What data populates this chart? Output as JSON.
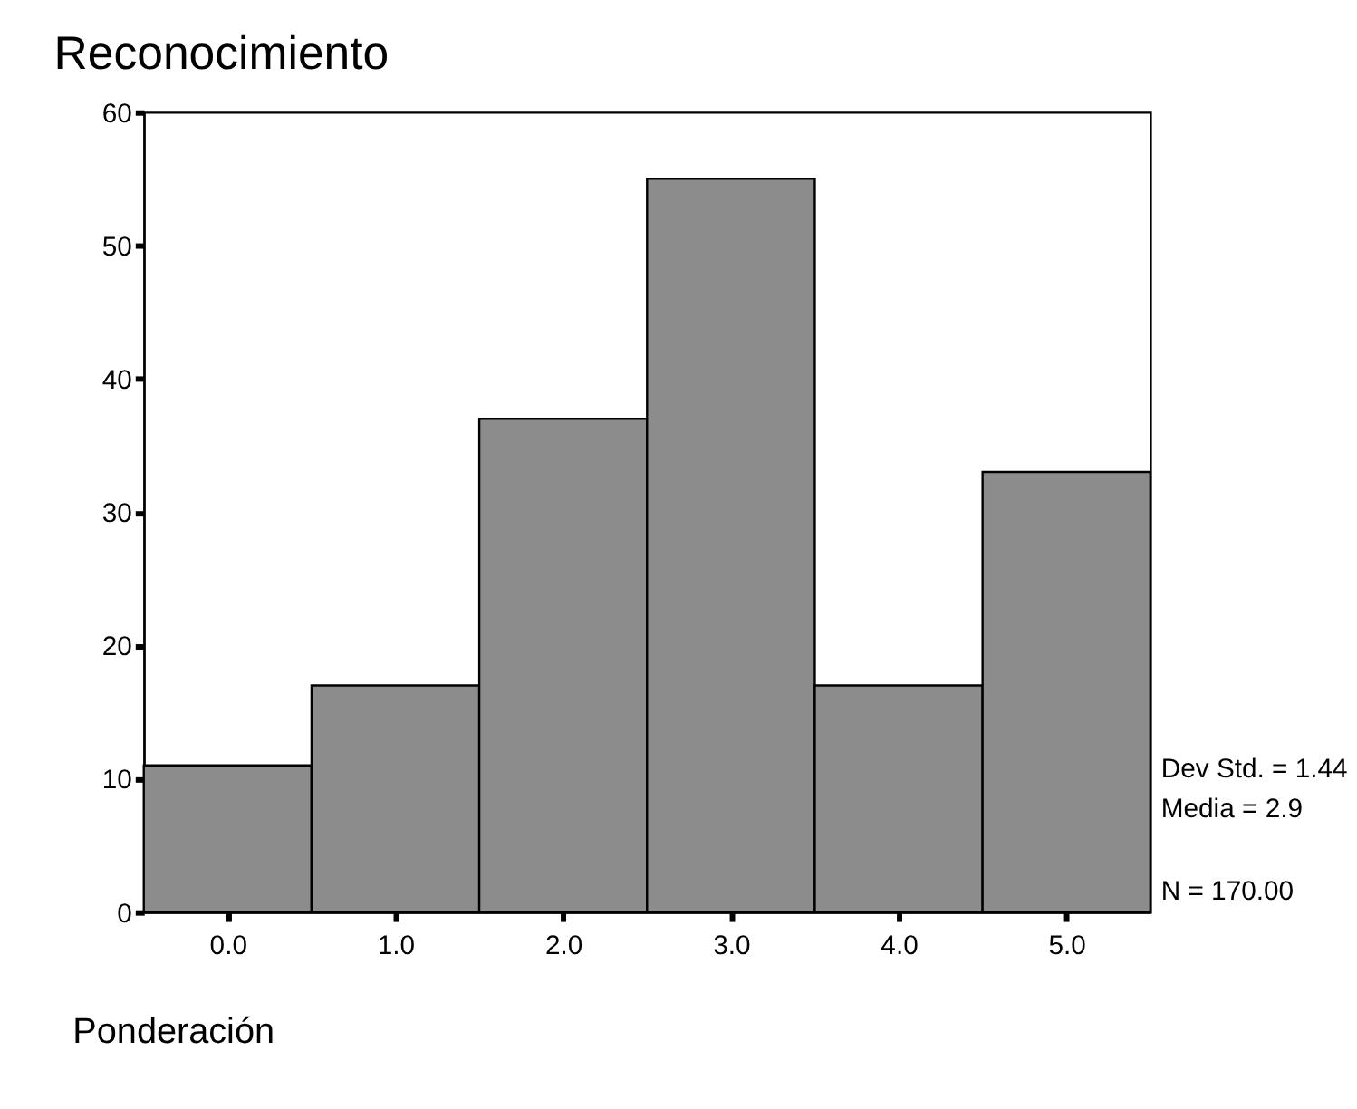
{
  "chart_data": {
    "type": "histogram",
    "title": "Reconocimiento",
    "xlabel": "Ponderación",
    "bins": [
      -0.5,
      0.5,
      1.5,
      2.5,
      3.5,
      4.5,
      5.5
    ],
    "values": [
      11,
      17,
      37,
      55,
      17,
      33
    ],
    "color": "#8c8c8c",
    "xlim": [
      -0.5,
      5.5
    ],
    "xticks": [
      {
        "value": 0,
        "label": "0.0"
      },
      {
        "value": 1,
        "label": "1.0"
      },
      {
        "value": 2,
        "label": "2.0"
      },
      {
        "value": 3,
        "label": "3.0"
      },
      {
        "value": 4,
        "label": "4.0"
      },
      {
        "value": 5,
        "label": "5.0"
      }
    ],
    "ylim": [
      0,
      60
    ],
    "yticks": [
      0,
      10,
      20,
      30,
      40,
      50,
      60
    ],
    "grid": false,
    "annotations": [
      "Dev Std. = 1.44",
      "Media = 2.9",
      "N = 170.00"
    ]
  }
}
